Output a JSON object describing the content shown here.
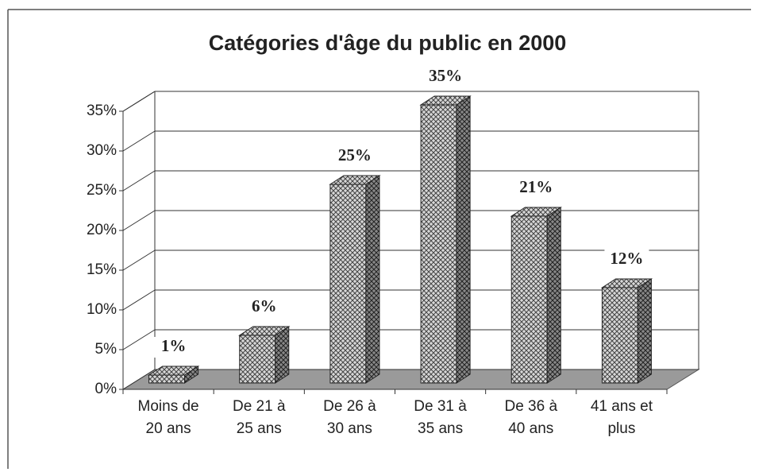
{
  "chart_data": {
    "type": "bar",
    "title": "Catégories d'âge du public en 2000",
    "categories": [
      "Moins de 20 ans",
      "De 21 à 25 ans",
      "De 26 à 30 ans",
      "De 31 à 35 ans",
      "De 36 à 40 ans",
      "41 ans et plus"
    ],
    "values": [
      1,
      6,
      25,
      35,
      21,
      12
    ],
    "value_labels": [
      "1%",
      "6%",
      "25%",
      "35%",
      "21%",
      "12%"
    ],
    "color": "#bdbdbd",
    "ylim": [
      0,
      35
    ],
    "yticks": [
      {
        "value": 0,
        "label": "0%"
      },
      {
        "value": 5,
        "label": "5%"
      },
      {
        "value": 10,
        "label": "10%"
      },
      {
        "value": 15,
        "label": "15%"
      },
      {
        "value": 20,
        "label": "20%"
      },
      {
        "value": 25,
        "label": "25%"
      },
      {
        "value": 30,
        "label": "30%"
      },
      {
        "value": 35,
        "label": "35%"
      }
    ],
    "grid": true
  }
}
